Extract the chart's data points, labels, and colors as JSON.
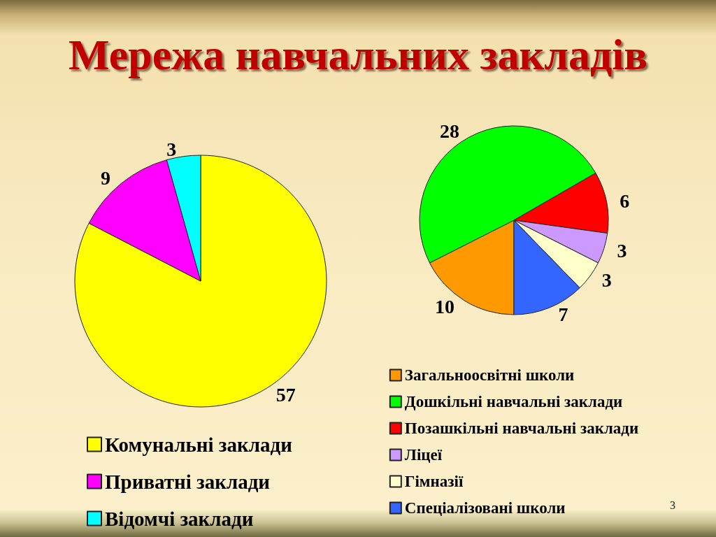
{
  "chart_data": [
    {
      "type": "pie",
      "title": "Мережа навчальних закладів",
      "categories": [
        "Комунальні заклади",
        "Приватні заклади",
        "Відомчі заклади"
      ],
      "values": [
        57,
        9,
        3
      ],
      "colors": [
        "#ffff00",
        "#ff00ff",
        "#00ffff"
      ],
      "data_labels": true,
      "legend": "bottom left"
    },
    {
      "type": "pie",
      "categories": [
        "Загальноосвітні школи",
        "Дошкільні навчальні заклади",
        "Позашкільні навчальні заклади",
        "Ліцеї",
        "Гімназії",
        "Спеціалізовані школи"
      ],
      "values": [
        10,
        28,
        6,
        3,
        3,
        7
      ],
      "colors": [
        "#ff9900",
        "#00ff00",
        "#ff0000",
        "#cc99ff",
        "#ffffcc",
        "#3366ff"
      ],
      "data_labels": true,
      "legend": "bottom",
      "annotations": [
        "3"
      ]
    }
  ]
}
